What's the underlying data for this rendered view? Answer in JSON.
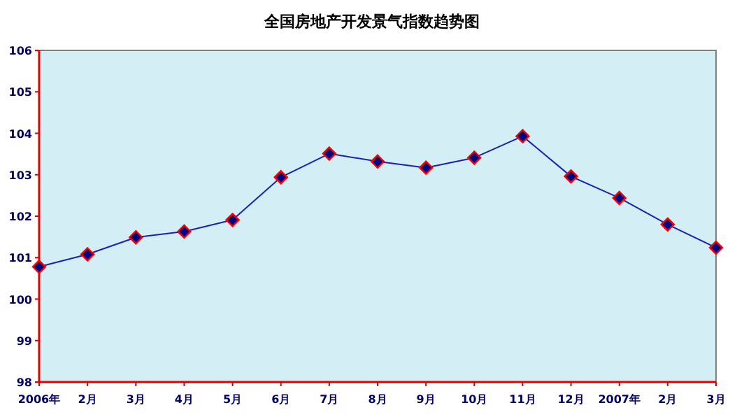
{
  "chart_data": {
    "type": "line",
    "title": "全国房地产开发景气指数趋势图",
    "categories": [
      "2006年",
      "2月",
      "3月",
      "4月",
      "5月",
      "6月",
      "7月",
      "8月",
      "9月",
      "10月",
      "11月",
      "12月",
      "2007年",
      "2月",
      "3月"
    ],
    "values": [
      100.78,
      101.08,
      101.49,
      101.63,
      101.91,
      102.94,
      103.51,
      103.32,
      103.17,
      103.41,
      103.93,
      102.96,
      102.44,
      101.8,
      101.24
    ],
    "color": "#1f1fb4",
    "marker": "diamond",
    "line_style": "solid",
    "ylim": [
      98,
      106
    ],
    "yticks": [
      98,
      99,
      100,
      101,
      102,
      103,
      104,
      105,
      106
    ]
  }
}
